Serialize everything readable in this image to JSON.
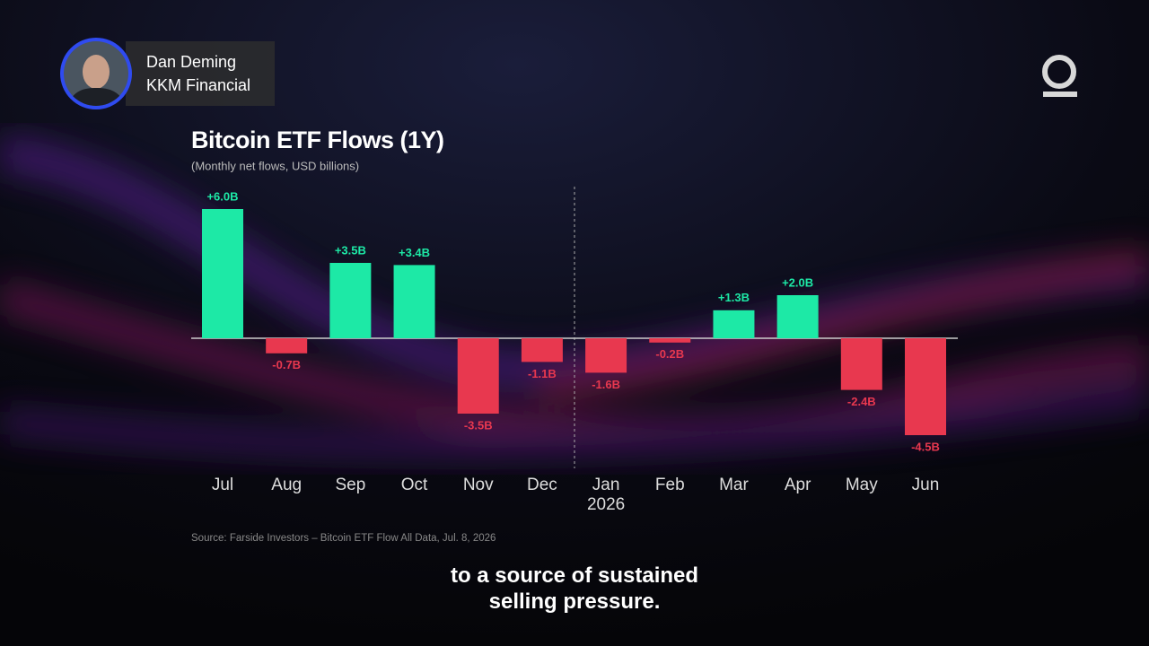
{
  "lower_third": {
    "name": "Dan Deming",
    "company": "KKM Financial"
  },
  "chart_data": {
    "type": "bar",
    "title": "Bitcoin ETF Flows (1Y)",
    "subtitle": "(Monthly net flows, USD billions)",
    "categories": [
      "Jul",
      "Aug",
      "Sep",
      "Oct",
      "Nov",
      "Dec",
      "Jan 2026",
      "Feb",
      "Mar",
      "Apr",
      "May",
      "Jun"
    ],
    "values": [
      6.0,
      -0.7,
      3.5,
      3.4,
      -3.5,
      -1.1,
      -1.6,
      -0.2,
      1.3,
      2.0,
      -2.4,
      -4.5
    ],
    "value_labels": [
      "+6.0B",
      "-0.7B",
      "+3.5B",
      "+3.4B",
      "-3.5B",
      "-1.1B",
      "-1.6B",
      "-0.2B",
      "+1.3B",
      "+2.0B",
      "-2.4B",
      "-4.5B"
    ],
    "colors": {
      "positive": "#1de9a6",
      "negative": "#e8384f"
    },
    "source": "Source: Farside Investors – Bitcoin ETF Flow All Data, Jul. 8, 2026"
  },
  "caption": [
    "to a source of sustained",
    "selling pressure."
  ]
}
